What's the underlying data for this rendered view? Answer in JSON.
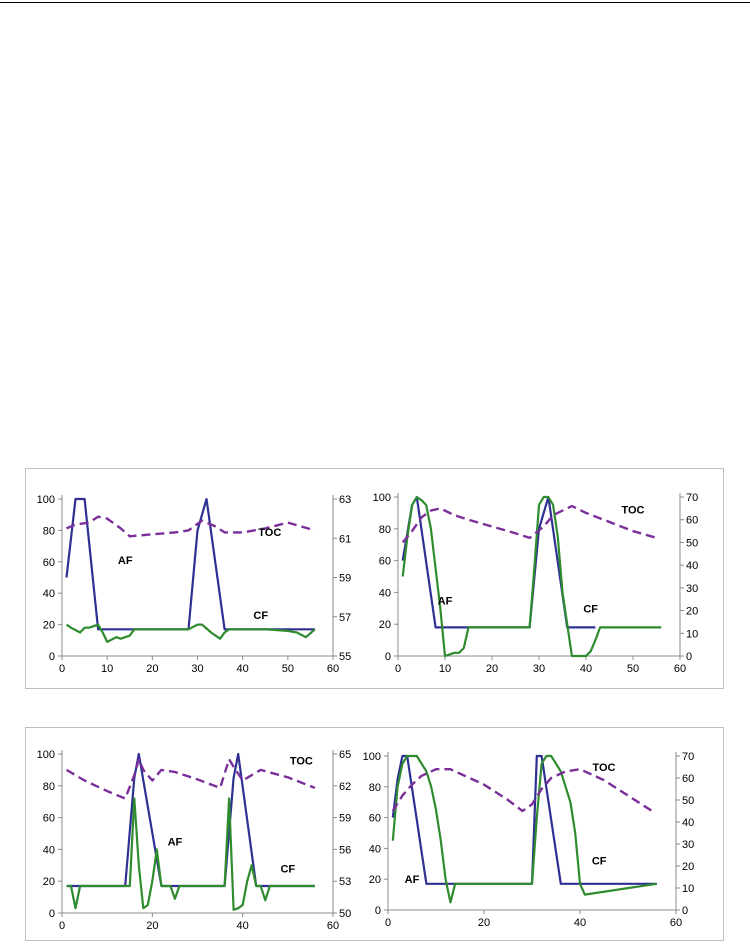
{
  "colors": {
    "af": "#2e3192",
    "cf": "#2e8b2e",
    "toc": "#7b2f9a",
    "axis": "#8c8c8c",
    "text": "#000000"
  },
  "chart_data": [
    {
      "type": "line",
      "xlim": [
        0,
        60
      ],
      "xticks": [
        0,
        10,
        20,
        30,
        40,
        50,
        60
      ],
      "ylim": [
        0,
        100
      ],
      "yticks": [
        0,
        20,
        40,
        60,
        80,
        100
      ],
      "y2lim": [
        55,
        63
      ],
      "y2ticks": [
        55,
        57,
        59,
        61,
        63
      ],
      "grid": false,
      "series": [
        {
          "name": "AF",
          "axis": "left",
          "style": "solid",
          "color": "af",
          "x": [
            1,
            3,
            5,
            8,
            28,
            30,
            32,
            36,
            56
          ],
          "y": [
            50,
            100,
            100,
            17,
            17,
            80,
            100,
            17,
            17
          ]
        },
        {
          "name": "CF",
          "axis": "left",
          "style": "solid",
          "color": "cf",
          "x": [
            1,
            2,
            4,
            5,
            6,
            8,
            9,
            10,
            12,
            13,
            15,
            16,
            27,
            28,
            30,
            31,
            33,
            35,
            36,
            37,
            38,
            40,
            45,
            50,
            52,
            54,
            56
          ],
          "y": [
            20,
            18,
            15,
            18,
            18,
            20,
            15,
            9,
            12,
            11,
            13,
            17,
            17,
            17,
            20,
            20,
            15,
            11,
            15,
            17,
            17,
            17,
            17,
            16,
            15,
            12,
            17
          ]
        },
        {
          "name": "TOC",
          "axis": "right",
          "style": "dashed",
          "color": "toc",
          "x": [
            1,
            3,
            6,
            8,
            10,
            13,
            15,
            20,
            25,
            28,
            31,
            34,
            36,
            40,
            45,
            50,
            53,
            56
          ],
          "y": [
            61.5,
            61.7,
            61.8,
            62.1,
            62.0,
            61.5,
            61.1,
            61.2,
            61.3,
            61.4,
            61.9,
            61.6,
            61.3,
            61.3,
            61.5,
            61.8,
            61.6,
            61.4
          ]
        }
      ],
      "labels": [
        {
          "text": "AF",
          "x": 14,
          "y": 61
        },
        {
          "text": "CF",
          "x": 44,
          "y": 26
        },
        {
          "text": "TOC",
          "x": 46,
          "y": 79
        }
      ]
    },
    {
      "type": "line",
      "xlim": [
        0,
        60
      ],
      "xticks": [
        0,
        10,
        20,
        30,
        40,
        50,
        60
      ],
      "ylim": [
        0,
        100
      ],
      "yticks": [
        0,
        20,
        40,
        60,
        80,
        100
      ],
      "y2lim": [
        0,
        70
      ],
      "y2ticks": [
        0,
        10,
        20,
        30,
        40,
        50,
        60,
        70
      ],
      "grid": false,
      "series": [
        {
          "name": "AF",
          "axis": "left",
          "style": "solid",
          "color": "af",
          "x": [
            1,
            3,
            4,
            8,
            28,
            30,
            32,
            36,
            42
          ],
          "y": [
            60,
            95,
            100,
            18,
            18,
            80,
            100,
            18,
            18
          ]
        },
        {
          "name": "CF",
          "axis": "left",
          "style": "solid",
          "color": "cf",
          "x": [
            1,
            2,
            3,
            4,
            5,
            6,
            7,
            8,
            9,
            10,
            12,
            13,
            14,
            15,
            28,
            29,
            30,
            31,
            32,
            33,
            34,
            35,
            36,
            37,
            40,
            41,
            42,
            43,
            56
          ],
          "y": [
            50,
            75,
            95,
            100,
            98,
            95,
            80,
            55,
            30,
            0,
            2,
            2,
            5,
            18,
            18,
            55,
            95,
            100,
            100,
            95,
            75,
            40,
            20,
            0,
            0,
            3,
            10,
            18,
            18
          ]
        },
        {
          "name": "TOC",
          "axis": "right",
          "style": "dashed",
          "color": "toc",
          "x": [
            1,
            3,
            5,
            7,
            9,
            12,
            15,
            20,
            25,
            28,
            31,
            33,
            35,
            37,
            40,
            45,
            50,
            55
          ],
          "y": [
            50,
            55,
            61,
            64,
            65,
            62,
            60,
            57,
            54,
            52,
            57,
            62,
            64,
            66,
            63,
            59,
            55,
            52
          ]
        }
      ],
      "labels": [
        {
          "text": "AF",
          "x": 10,
          "y": 35
        },
        {
          "text": "CF",
          "x": 41,
          "y": 30
        },
        {
          "text": "TOC",
          "x": 50,
          "y": 92
        }
      ]
    },
    {
      "type": "line",
      "xlim": [
        0,
        60
      ],
      "xticks": [
        0,
        20,
        40,
        60
      ],
      "ylim": [
        0,
        100
      ],
      "yticks": [
        0,
        20,
        40,
        60,
        80,
        100
      ],
      "y2lim": [
        50,
        65
      ],
      "y2ticks": [
        50,
        53,
        56,
        59,
        62,
        65
      ],
      "grid": false,
      "series": [
        {
          "name": "AF",
          "axis": "left",
          "style": "solid",
          "color": "af",
          "x": [
            1,
            14,
            16,
            17,
            22,
            36,
            38,
            39,
            43,
            56
          ],
          "y": [
            17,
            17,
            85,
            100,
            17,
            17,
            85,
            100,
            17,
            17
          ]
        },
        {
          "name": "CF",
          "axis": "left",
          "style": "solid",
          "color": "cf",
          "x": [
            1,
            2,
            3,
            4,
            15,
            16,
            17,
            18,
            19,
            20,
            21,
            22,
            23,
            24,
            25,
            26,
            36,
            37,
            38,
            39,
            40,
            41,
            42,
            43,
            44,
            45,
            46,
            47,
            56
          ],
          "y": [
            17,
            17,
            3,
            17,
            17,
            72,
            30,
            3,
            5,
            20,
            40,
            17,
            17,
            17,
            9,
            17,
            17,
            72,
            2,
            3,
            5,
            20,
            30,
            17,
            17,
            8,
            17,
            17,
            17
          ]
        },
        {
          "name": "TOC",
          "axis": "right",
          "style": "dashed",
          "color": "toc",
          "x": [
            1,
            5,
            10,
            14,
            16,
            17,
            18,
            20,
            22,
            25,
            30,
            35,
            37,
            38,
            40,
            44,
            50,
            56
          ],
          "y": [
            63.5,
            62.5,
            61.5,
            60.8,
            63,
            64.5,
            63.5,
            62.5,
            63.5,
            63.3,
            62.6,
            61.8,
            64.5,
            63.8,
            62.5,
            63.5,
            62.8,
            61.8
          ]
        }
      ],
      "labels": [
        {
          "text": "AF",
          "x": 25,
          "y": 45
        },
        {
          "text": "CF",
          "x": 50,
          "y": 28
        },
        {
          "text": "TOC",
          "x": 53,
          "y": 96
        }
      ]
    },
    {
      "type": "line",
      "xlim": [
        0,
        60
      ],
      "xticks": [
        0,
        20,
        40,
        60
      ],
      "ylim": [
        0,
        100
      ],
      "yticks": [
        0,
        20,
        40,
        60,
        80,
        100
      ],
      "y2lim": [
        0,
        70
      ],
      "y2ticks": [
        0,
        10,
        20,
        30,
        40,
        50,
        60,
        70
      ],
      "grid": false,
      "series": [
        {
          "name": "AF",
          "axis": "left",
          "style": "solid",
          "color": "af",
          "x": [
            1,
            2,
            3,
            4,
            8,
            30,
            31,
            32,
            36,
            56
          ],
          "y": [
            60,
            85,
            100,
            100,
            17,
            17,
            100,
            100,
            17,
            17
          ]
        },
        {
          "name": "CF",
          "axis": "left",
          "style": "solid",
          "color": "cf",
          "x": [
            1,
            2,
            3,
            4,
            5,
            6,
            7,
            8,
            9,
            10,
            11,
            12,
            13,
            14,
            30,
            31,
            32,
            33,
            34,
            35,
            36,
            37,
            38,
            39,
            40,
            41,
            56
          ],
          "y": [
            45,
            80,
            95,
            100,
            100,
            100,
            95,
            90,
            80,
            65,
            45,
            20,
            5,
            17,
            17,
            60,
            95,
            100,
            100,
            95,
            90,
            80,
            70,
            50,
            17,
            10,
            17
          ]
        },
        {
          "name": "TOC",
          "axis": "right",
          "style": "dashed",
          "color": "toc",
          "x": [
            1,
            3,
            5,
            7,
            10,
            13,
            15,
            20,
            25,
            28,
            30,
            32,
            34,
            37,
            40,
            45,
            50,
            55
          ],
          "y": [
            45,
            52,
            57,
            61,
            64,
            64,
            62,
            57,
            50,
            45,
            48,
            55,
            60,
            63,
            64,
            59,
            52,
            45
          ]
        }
      ],
      "labels": [
        {
          "text": "AF",
          "x": 5,
          "y": 20
        },
        {
          "text": "CF",
          "x": 44,
          "y": 32
        },
        {
          "text": "TOC",
          "x": 45,
          "y": 93
        }
      ]
    }
  ]
}
